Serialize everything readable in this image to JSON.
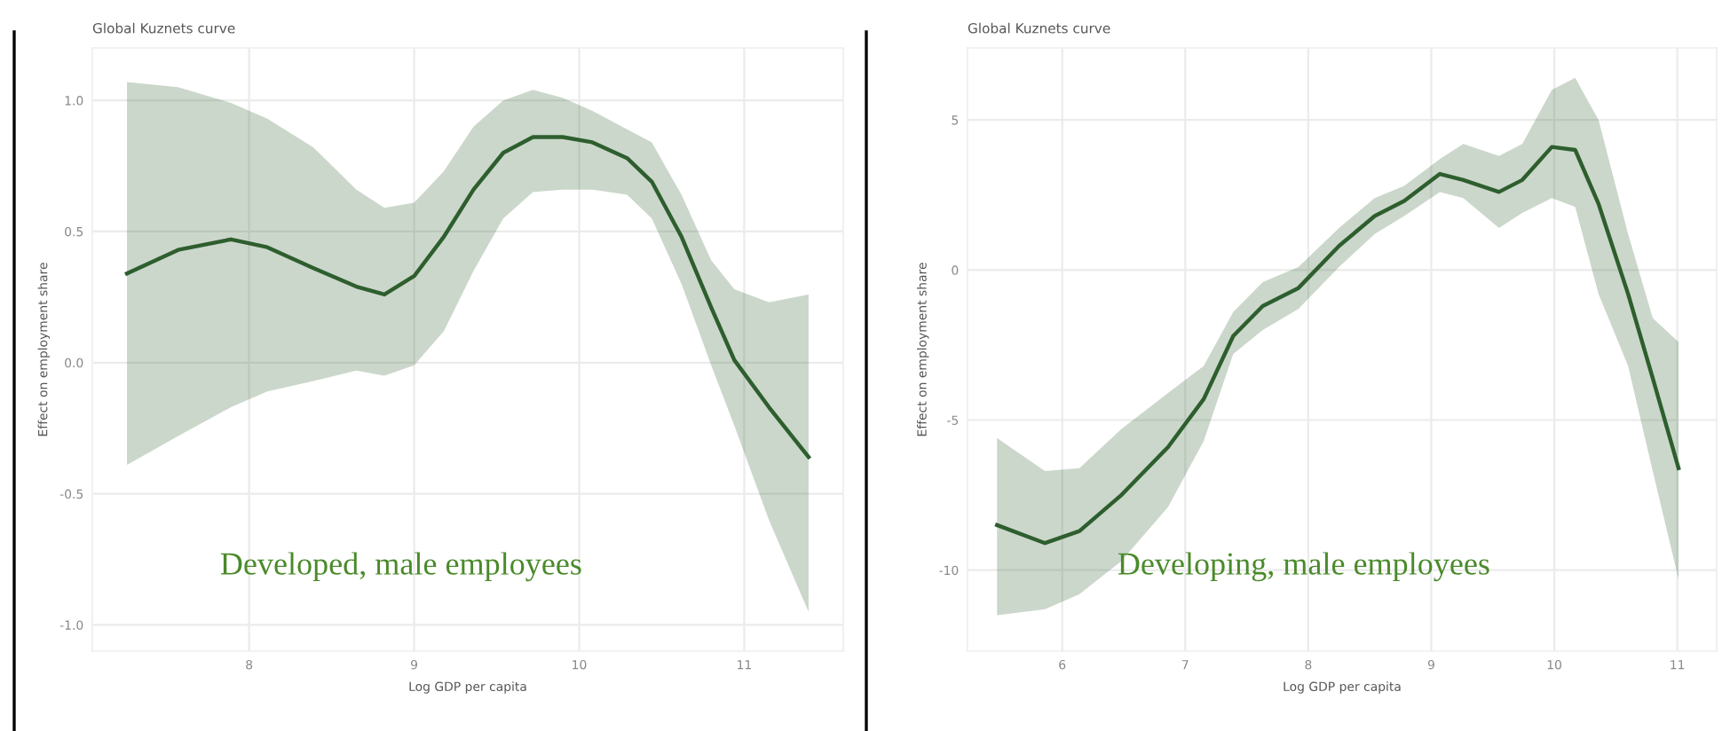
{
  "chart_data": [
    {
      "type": "line",
      "title": "Global Kuznets curve",
      "xlabel": "Log GDP per capita",
      "ylabel": "Effect on employment share",
      "annotations": [
        "Developed, male employees"
      ],
      "xlim": [
        7.05,
        11.6
      ],
      "xticks": [
        8,
        9,
        10,
        11
      ],
      "ylim": [
        -1.1,
        1.2
      ],
      "yticks": [
        {
          "value": -1,
          "label": "-1.0"
        },
        -0.5,
        {
          "value": 0,
          "label": "0.0"
        },
        0.5,
        {
          "value": 1,
          "label": "1.0"
        }
      ],
      "grid": true,
      "series": [
        {
          "color": "#2e5e2e",
          "x": [
            7.26,
            7.57,
            7.89,
            8.11,
            8.39,
            8.65,
            8.82,
            9.0,
            9.18,
            9.36,
            9.54,
            9.72,
            9.9,
            10.08,
            10.29,
            10.44,
            10.62,
            10.8,
            10.94,
            11.15,
            11.39
          ],
          "values": [
            0.34,
            0.43,
            0.47,
            0.44,
            0.36,
            0.29,
            0.26,
            0.33,
            0.48,
            0.66,
            0.8,
            0.86,
            0.86,
            0.84,
            0.78,
            0.69,
            0.48,
            0.21,
            0.01,
            -0.17,
            -0.36
          ],
          "upper": [
            1.07,
            1.05,
            0.99,
            0.93,
            0.82,
            0.66,
            0.59,
            0.61,
            0.73,
            0.9,
            1.0,
            1.04,
            1.01,
            0.96,
            0.89,
            0.84,
            0.64,
            0.39,
            0.28,
            0.23,
            0.26
          ],
          "lower": [
            -0.39,
            -0.28,
            -0.17,
            -0.11,
            -0.07,
            -0.03,
            -0.05,
            -0.01,
            0.12,
            0.35,
            0.55,
            0.65,
            0.66,
            0.66,
            0.64,
            0.55,
            0.3,
            -0.01,
            -0.24,
            -0.6,
            -0.95
          ]
        }
      ]
    },
    {
      "type": "line",
      "title": "Global Kuznets curve",
      "xlabel": "Log GDP per capita",
      "ylabel": "Effect on employment share",
      "annotations": [
        "Developing, male employees"
      ],
      "xlim": [
        5.23,
        11.32
      ],
      "xticks": [
        6,
        7,
        8,
        9,
        10,
        11
      ],
      "ylim": [
        -12.7,
        7.4
      ],
      "yticks": [
        -10,
        -5,
        0,
        5
      ],
      "grid": true,
      "series": [
        {
          "color": "#2e5e2e",
          "x": [
            5.47,
            5.86,
            6.14,
            6.48,
            6.86,
            7.15,
            7.39,
            7.63,
            7.92,
            8.25,
            8.54,
            8.78,
            9.07,
            9.26,
            9.55,
            9.74,
            9.98,
            10.17,
            10.36,
            10.6,
            10.8,
            11.01
          ],
          "values": [
            -8.5,
            -9.1,
            -8.7,
            -7.5,
            -5.9,
            -4.3,
            -2.2,
            -1.2,
            -0.6,
            0.8,
            1.8,
            2.3,
            3.2,
            3.0,
            2.6,
            3.0,
            4.1,
            4.0,
            2.2,
            -0.8,
            -3.6,
            -6.6
          ],
          "upper": [
            -5.6,
            -6.7,
            -6.6,
            -5.3,
            -4.1,
            -3.2,
            -1.4,
            -0.4,
            0.1,
            1.4,
            2.4,
            2.8,
            3.7,
            4.2,
            3.8,
            4.2,
            6.0,
            6.4,
            5.0,
            1.2,
            -1.6,
            -2.4
          ],
          "lower": [
            -11.5,
            -11.3,
            -10.8,
            -9.7,
            -7.9,
            -5.7,
            -2.8,
            -2.0,
            -1.3,
            0.1,
            1.2,
            1.8,
            2.6,
            2.4,
            1.4,
            1.9,
            2.4,
            2.1,
            -0.8,
            -3.2,
            -6.7,
            -10.3
          ]
        }
      ]
    }
  ]
}
